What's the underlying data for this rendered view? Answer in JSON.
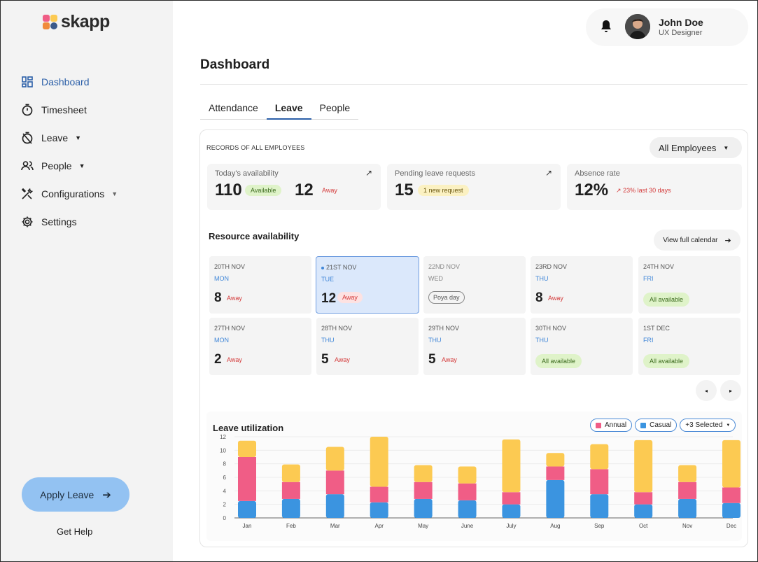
{
  "brand": {
    "name": "skapp"
  },
  "sidebar": {
    "items": [
      {
        "label": "Dashboard",
        "icon": "dashboard-icon"
      },
      {
        "label": "Timesheet",
        "icon": "timer-icon"
      },
      {
        "label": "Leave",
        "icon": "leave-icon"
      },
      {
        "label": "People",
        "icon": "people-icon"
      },
      {
        "label": "Configurations",
        "icon": "tools-icon"
      },
      {
        "label": "Settings",
        "icon": "gear-icon"
      }
    ],
    "apply_label": "Apply Leave",
    "help_label": "Get Help"
  },
  "user": {
    "name": "John Doe",
    "role": "UX Designer"
  },
  "page": {
    "title": "Dashboard"
  },
  "tabs": [
    "Attendance",
    "Leave",
    "People"
  ],
  "records": {
    "label": "RECORDS OF ALL EMPLOYEES",
    "filter": "All Employees"
  },
  "stats": {
    "availability": {
      "label": "Today's availability",
      "available": "110",
      "available_tag": "Available",
      "away": "12",
      "away_tag": "Away"
    },
    "pending": {
      "label": "Pending leave requests",
      "value": "15",
      "tag": "1 new request"
    },
    "absence": {
      "label": "Absence rate",
      "value": "12%",
      "trend": "23% last 30 days"
    }
  },
  "resource": {
    "title": "Resource availability",
    "calendar_btn": "View full calendar",
    "days": [
      {
        "date": "20TH NOV",
        "dow": "MON",
        "num": "8",
        "status": "Away"
      },
      {
        "date": "21ST NOV",
        "dow": "TUE",
        "num": "12",
        "status": "Away"
      },
      {
        "date": "22ND NOV",
        "dow": "WED",
        "holiday": "Poya day"
      },
      {
        "date": "23RD NOV",
        "dow": "THU",
        "num": "8",
        "status": "Away"
      },
      {
        "date": "24TH NOV",
        "dow": "FRI",
        "all": "All available"
      },
      {
        "date": "27TH NOV",
        "dow": "MON",
        "num": "2",
        "status": "Away"
      },
      {
        "date": "28TH NOV",
        "dow": "THU",
        "num": "5",
        "status": "Away"
      },
      {
        "date": "29TH NOV",
        "dow": "THU",
        "num": "5",
        "status": "Away"
      },
      {
        "date": "30TH NOV",
        "dow": "THU",
        "all": "All available"
      },
      {
        "date": "1ST DEC",
        "dow": "FRI",
        "all": "All available"
      }
    ],
    "prev": "◂",
    "next": "▸"
  },
  "leave_util": {
    "title": "Leave utilization",
    "legend": {
      "annual": "Annual",
      "casual": "Casual",
      "more": "+3 Selected"
    }
  },
  "colors": {
    "annual": "#f05d86",
    "casual": "#3b94e0",
    "other": "#fcca52",
    "accent": "#2b5fa8"
  },
  "chart_data": {
    "type": "bar",
    "stacked": true,
    "categories": [
      "Jan",
      "Feb",
      "Mar",
      "Apr",
      "May",
      "June",
      "July",
      "Aug",
      "Sep",
      "Oct",
      "Nov",
      "Dec"
    ],
    "ylim": [
      0,
      12
    ],
    "yticks": [
      0,
      2,
      4,
      6,
      8,
      10,
      12
    ],
    "series": [
      {
        "name": "Casual",
        "values": [
          2.5,
          2.8,
          3.5,
          2.3,
          2.8,
          2.6,
          2.0,
          5.6,
          3.5,
          2.0,
          2.8,
          2.2
        ]
      },
      {
        "name": "Annual",
        "values": [
          6.5,
          2.5,
          3.5,
          2.3,
          2.5,
          2.5,
          1.8,
          2.0,
          3.7,
          1.8,
          2.5,
          2.3
        ]
      },
      {
        "values": [
          2.4,
          2.6,
          3.5,
          7.4,
          2.5,
          2.5,
          7.8,
          2.0,
          3.7,
          7.7,
          2.5,
          7.0
        ]
      }
    ]
  }
}
